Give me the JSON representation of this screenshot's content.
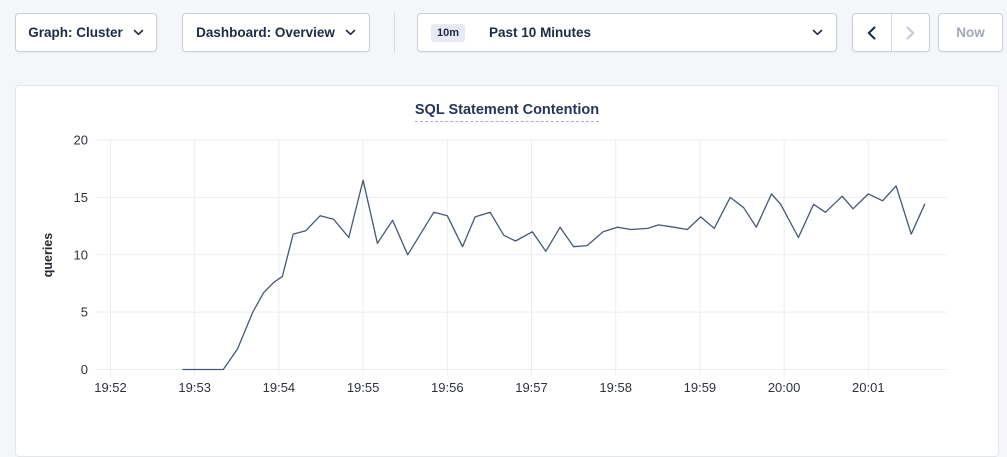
{
  "colors": {
    "page_background": "#f4f6fa",
    "card_background": "#ffffff",
    "card_border": "#e3e6ed",
    "button_border": "#c9cfdb",
    "button_text": "#1e2a43",
    "disabled_text": "#a2a8b5",
    "title_text": "#26355c",
    "gridline": "#ecedf1",
    "line_series": "#485873"
  },
  "icons": {
    "dropdown_chevron": "chevron-down",
    "time_prev": "chevron-left",
    "time_next": "chevron-right"
  },
  "toolbar": {
    "graph_dropdown": {
      "label": "Graph: Cluster"
    },
    "dashboard_dropdown": {
      "label": "Dashboard: Overview"
    },
    "time_picker": {
      "badge": "10m",
      "label": "Past 10 Minutes"
    },
    "now_button": {
      "label": "Now"
    }
  },
  "chart_card": {
    "title": "SQL Statement Contention"
  },
  "chart_data": {
    "type": "line",
    "title": "SQL Statement Contention",
    "xlabel": "",
    "ylabel": "queries",
    "ylim": [
      0,
      20
    ],
    "y_ticks": [
      0,
      5,
      10,
      15,
      20
    ],
    "x_ticks": [
      {
        "min": 0,
        "label": "19:52"
      },
      {
        "min": 1,
        "label": "19:53"
      },
      {
        "min": 2,
        "label": "19:54"
      },
      {
        "min": 3,
        "label": "19:55"
      },
      {
        "min": 4,
        "label": "19:56"
      },
      {
        "min": 5,
        "label": "19:57"
      },
      {
        "min": 6,
        "label": "19:58"
      },
      {
        "min": 7,
        "label": "19:59"
      },
      {
        "min": 8,
        "label": "20:00"
      },
      {
        "min": 9,
        "label": "20:01"
      }
    ],
    "x_range_minutes": [
      -0.18,
      9.94
    ],
    "grid": true,
    "legend": "none",
    "series": [
      {
        "name": "queries",
        "color": "#485873",
        "x_min": [
          0.86,
          1.02,
          1.19,
          1.34,
          1.51,
          1.69,
          1.82,
          1.94,
          2.04,
          2.17,
          2.32,
          2.49,
          2.65,
          2.83,
          3.0,
          3.17,
          3.35,
          3.53,
          3.84,
          4.0,
          4.18,
          4.33,
          4.51,
          4.67,
          4.81,
          5.01,
          5.17,
          5.34,
          5.5,
          5.66,
          5.85,
          6.02,
          6.18,
          6.38,
          6.51,
          6.69,
          6.85,
          7.01,
          7.17,
          7.36,
          7.52,
          7.67,
          7.85,
          7.96,
          8.17,
          8.35,
          8.49,
          8.69,
          8.82,
          9.0,
          9.17,
          9.33,
          9.51,
          9.67
        ],
        "values": [
          0,
          0,
          0,
          0,
          1.8,
          5.0,
          6.7,
          7.6,
          8.1,
          11.8,
          12.1,
          13.4,
          13.1,
          11.5,
          16.5,
          11.0,
          13.0,
          10.0,
          13.7,
          13.4,
          10.7,
          13.3,
          13.7,
          11.7,
          11.2,
          12.0,
          10.3,
          12.4,
          10.7,
          10.8,
          12.0,
          12.4,
          12.2,
          12.3,
          12.6,
          12.4,
          12.2,
          13.3,
          12.3,
          15.0,
          14.1,
          12.4,
          15.3,
          14.4,
          11.5,
          14.4,
          13.7,
          15.1,
          14.0,
          15.3,
          14.7,
          16.0,
          11.8,
          14.4
        ]
      }
    ]
  }
}
